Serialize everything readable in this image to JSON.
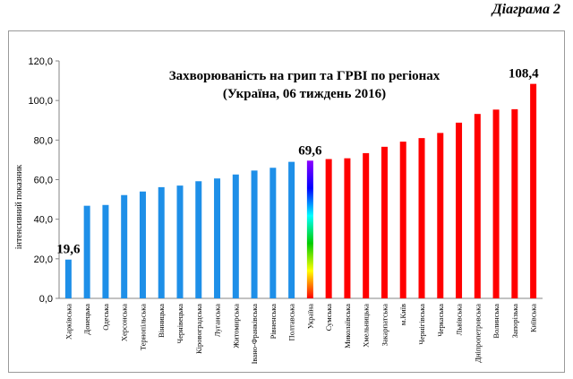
{
  "caption": "Діаграма 2",
  "chart_data": {
    "type": "bar",
    "title_line1": "Захворюваність на грип та ГРВІ по регіонах",
    "title_line2": "(Україна, 06 тиждень 2016)",
    "ylabel": "інтенсивний показник",
    "xlabel": "",
    "ylim": [
      0,
      120
    ],
    "yticks": [
      "0,0",
      "20,0",
      "40,0",
      "60,0",
      "80,0",
      "100,0",
      "120,0"
    ],
    "grid": false,
    "legend": "none",
    "categories": [
      "Харківська",
      "Донецька",
      "Одеська",
      "Херсонська",
      "Тернопільська",
      "Вінницька",
      "Чернівецька",
      "Кіровоградська",
      "Луганська",
      "Житомирська",
      "Івано-Франківська",
      "Рівненська",
      "Полтавська",
      "Україна",
      "Сумська",
      "Миколаївська",
      "Хмельницька",
      "Закарпатська",
      "м.Київ",
      "Чернігівська",
      "Черкаська",
      "Львівська",
      "Дніпропетровська",
      "Волинська",
      "Запорізька",
      "Київська"
    ],
    "values": [
      19.6,
      46.8,
      47.2,
      52.2,
      54.0,
      56.2,
      57.0,
      59.2,
      60.6,
      62.6,
      64.6,
      66.0,
      69.0,
      69.6,
      70.4,
      70.8,
      73.4,
      76.6,
      79.2,
      81.0,
      83.6,
      88.8,
      93.2,
      95.4,
      95.6,
      108.4
    ],
    "data_labels": [
      {
        "index": 0,
        "text": "19,6"
      },
      {
        "index": 13,
        "text": "69,6"
      },
      {
        "index": 25,
        "text": "108,4"
      }
    ],
    "colors": {
      "below": "#1e8fe8",
      "above": "#ff0000",
      "highlight_gradient": [
        "#ff0000",
        "#ffff00",
        "#00cc00",
        "#00ffff",
        "#0000ff",
        "#8b00ff"
      ]
    },
    "highlight_index": 13
  }
}
